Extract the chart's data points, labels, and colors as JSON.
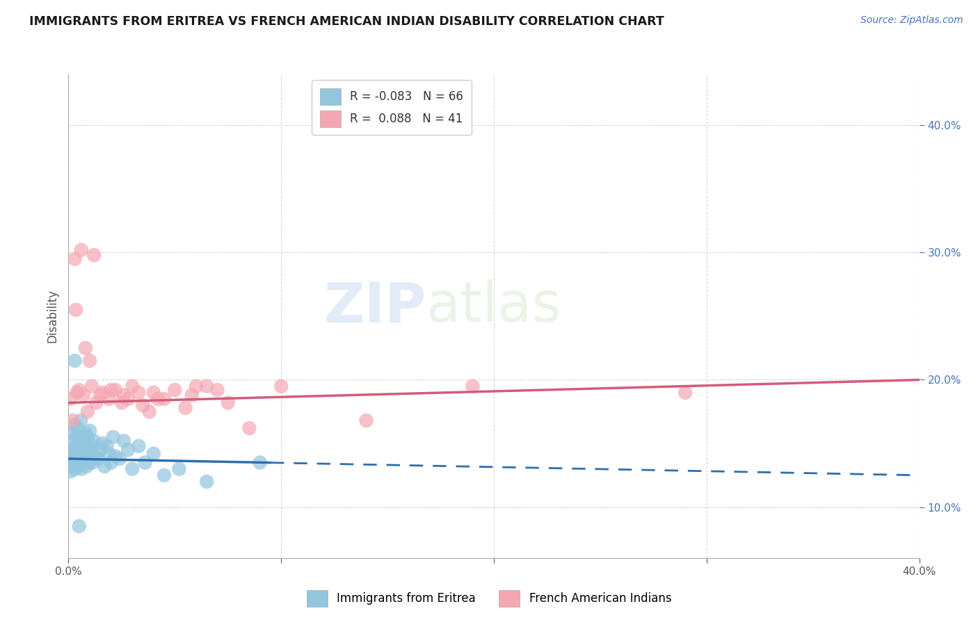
{
  "title": "IMMIGRANTS FROM ERITREA VS FRENCH AMERICAN INDIAN DISABILITY CORRELATION CHART",
  "source": "Source: ZipAtlas.com",
  "ylabel": "Disability",
  "legend_blue_R": "R = -0.083",
  "legend_blue_N": "N = 66",
  "legend_pink_R": "R =  0.088",
  "legend_pink_N": "N = 41",
  "legend_blue_label": "Immigrants from Eritrea",
  "legend_pink_label": "French American Indians",
  "watermark_zip": "ZIP",
  "watermark_atlas": "atlas",
  "blue_color": "#92c5de",
  "pink_color": "#f4a7b2",
  "blue_line_color": "#2c6fad",
  "pink_line_color": "#d45b7a",
  "xlim": [
    0.0,
    40.0
  ],
  "ylim": [
    6.0,
    44.0
  ],
  "ytick_vals": [
    10.0,
    20.0,
    30.0,
    40.0
  ],
  "xtick_vals": [
    0.0,
    10.0,
    20.0,
    30.0,
    40.0
  ],
  "blue_points_x": [
    0.05,
    0.08,
    0.1,
    0.12,
    0.15,
    0.18,
    0.2,
    0.22,
    0.25,
    0.28,
    0.3,
    0.32,
    0.35,
    0.38,
    0.4,
    0.42,
    0.45,
    0.48,
    0.5,
    0.52,
    0.55,
    0.58,
    0.6,
    0.62,
    0.65,
    0.68,
    0.7,
    0.72,
    0.75,
    0.78,
    0.8,
    0.82,
    0.85,
    0.88,
    0.9,
    0.92,
    0.95,
    0.98,
    1.0,
    1.05,
    1.1,
    1.15,
    1.2,
    1.3,
    1.4,
    1.5,
    1.6,
    1.7,
    1.8,
    1.9,
    2.0,
    2.1,
    2.2,
    2.4,
    2.6,
    2.8,
    3.0,
    3.3,
    3.6,
    4.0,
    4.5,
    5.2,
    6.5,
    9.0,
    0.3,
    0.5
  ],
  "blue_points_y": [
    13.5,
    14.0,
    12.8,
    15.2,
    13.8,
    14.5,
    13.2,
    15.8,
    14.2,
    13.6,
    16.5,
    13.0,
    14.8,
    15.5,
    13.3,
    16.2,
    14.0,
    13.5,
    15.0,
    14.5,
    13.8,
    16.8,
    14.2,
    13.0,
    15.5,
    14.8,
    13.5,
    15.2,
    14.0,
    13.8,
    15.8,
    14.5,
    13.2,
    14.0,
    15.5,
    13.8,
    14.2,
    13.5,
    16.0,
    14.5,
    14.8,
    13.5,
    15.2,
    14.0,
    13.8,
    14.5,
    15.0,
    13.2,
    14.8,
    14.2,
    13.5,
    15.5,
    14.0,
    13.8,
    15.2,
    14.5,
    13.0,
    14.8,
    13.5,
    14.2,
    12.5,
    13.0,
    12.0,
    13.5,
    21.5,
    8.5
  ],
  "pink_points_x": [
    0.1,
    0.2,
    0.35,
    0.5,
    0.7,
    0.9,
    1.1,
    1.3,
    1.6,
    1.9,
    2.2,
    2.6,
    3.0,
    3.5,
    4.0,
    4.5,
    5.0,
    5.8,
    6.5,
    7.5,
    0.3,
    0.6,
    1.0,
    1.5,
    2.0,
    2.8,
    3.3,
    4.2,
    5.5,
    7.0,
    0.4,
    0.8,
    1.2,
    2.5,
    3.8,
    6.0,
    8.5,
    14.0,
    19.0,
    29.0,
    10.0
  ],
  "pink_points_y": [
    18.5,
    16.8,
    25.5,
    19.2,
    18.8,
    17.5,
    19.5,
    18.2,
    19.0,
    18.5,
    19.2,
    18.8,
    19.5,
    18.0,
    19.0,
    18.5,
    19.2,
    18.8,
    19.5,
    18.2,
    29.5,
    30.2,
    21.5,
    18.8,
    19.2,
    18.5,
    19.0,
    18.5,
    17.8,
    19.2,
    19.0,
    22.5,
    29.8,
    18.2,
    17.5,
    19.5,
    16.2,
    16.8,
    19.5,
    19.0,
    19.5
  ],
  "blue_trend_y_at0": 13.8,
  "blue_trend_y_at40": 12.5,
  "blue_solid_end_x": 9.5,
  "pink_trend_y_at0": 18.2,
  "pink_trend_y_at40": 20.0,
  "pink_solid_end_x": 40.0,
  "background_color": "#ffffff",
  "grid_color": "#cccccc",
  "ytick_color": "#4472c4",
  "xtick_color": "#555555",
  "title_color": "#1a1a1a",
  "source_color": "#4472c4",
  "ylabel_color": "#555555"
}
